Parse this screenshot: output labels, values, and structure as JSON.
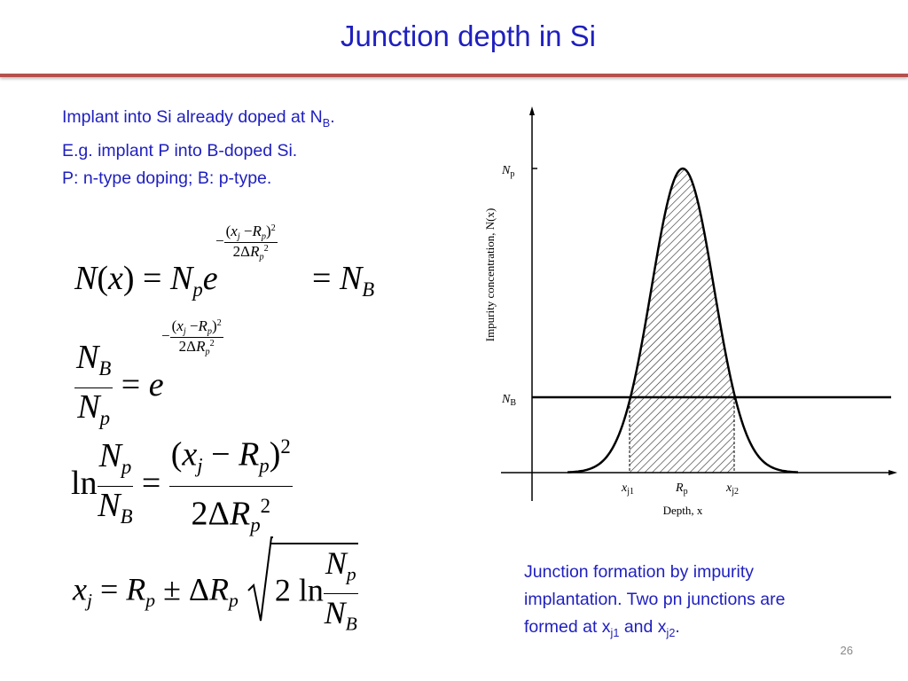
{
  "title": "Junction depth in Si",
  "intro": {
    "line1_main": "Implant into Si already doped at N",
    "line1_sub": "B",
    "line1_end": ".",
    "line2": "E.g. implant P into B-doped Si.",
    "line3": "P: n-type doping; B: p-type."
  },
  "caption": {
    "line1": "Junction formation by impurity",
    "line2": "implantation. Two pn junctions are",
    "line3_a": "formed at x",
    "line3_sub1": "j1",
    "line3_b": " and x",
    "line3_sub2": "j2",
    "line3_c": "."
  },
  "page_number": "26",
  "colors": {
    "text_blue": "#1f1fbf",
    "rule_red": "#b5504d"
  },
  "figure": {
    "ylabel": "Impurity concentration, N(x)",
    "xlabel": "Depth, x",
    "y_tick_np": "N",
    "y_tick_np_sub": "p",
    "y_tick_nb": "N",
    "y_tick_nb_sub": "B",
    "x_tick_xj1": "x",
    "x_tick_xj1_sub": "j1",
    "x_tick_rp": "R",
    "x_tick_rp_sub": "p",
    "x_tick_xj2": "x",
    "x_tick_xj2_sub": "j2"
  }
}
